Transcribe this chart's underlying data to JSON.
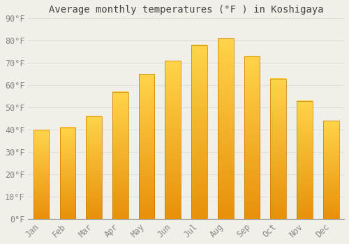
{
  "title": "Average monthly temperatures (°F ) in Koshigaya",
  "months": [
    "Jan",
    "Feb",
    "Mar",
    "Apr",
    "May",
    "Jun",
    "Jul",
    "Aug",
    "Sep",
    "Oct",
    "Nov",
    "Dec"
  ],
  "values": [
    40,
    41,
    46,
    57,
    65,
    71,
    78,
    81,
    73,
    63,
    53,
    44
  ],
  "bar_color_bottom": "#E8900A",
  "bar_color_top": "#FFD44A",
  "bar_edge_color": "#C87800",
  "ylim": [
    0,
    90
  ],
  "ytick_step": 10,
  "background_color": "#F0EFE8",
  "grid_color": "#DDDDDD",
  "title_fontsize": 10,
  "tick_fontsize": 8.5,
  "bar_width": 0.6
}
